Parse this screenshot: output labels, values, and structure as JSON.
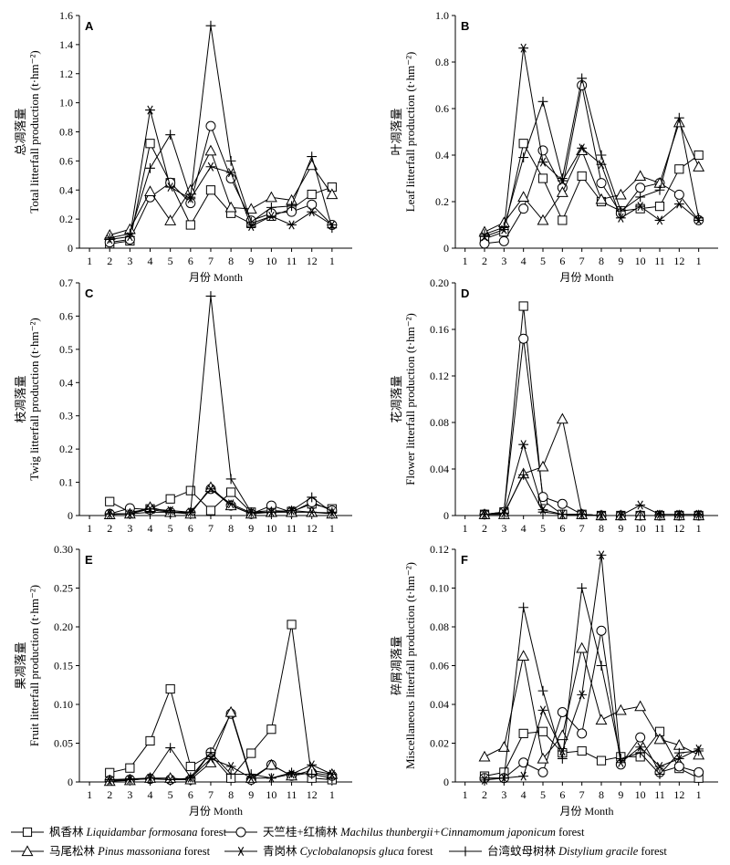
{
  "chart_data": [
    {
      "type": "line",
      "panel": "A",
      "ylabel_cn": "总凋落量",
      "ylabel_en": "Total litterfall production (t·hm⁻²)",
      "xlabel": "月份 Month",
      "x": [
        "1",
        "2",
        "3",
        "4",
        "5",
        "6",
        "7",
        "8",
        "9",
        "10",
        "11",
        "12",
        "1"
      ],
      "ylim": [
        0,
        1.6
      ],
      "yticks": [
        "0",
        "0.2",
        "0.4",
        "0.6",
        "0.8",
        "1.0",
        "1.2",
        "1.4",
        "1.6"
      ],
      "series": [
        {
          "name": "枫香林 Liquidambar formosana forest",
          "marker": "square",
          "values": [
            null,
            0.03,
            0.05,
            0.72,
            0.45,
            0.16,
            0.4,
            0.24,
            0.17,
            0.22,
            0.27,
            0.37,
            0.42
          ]
        },
        {
          "name": "天竺桂+红楠林 Machilus thunbergii+Cinnamomum japonicum forest",
          "marker": "circle",
          "values": [
            null,
            0.04,
            0.06,
            0.35,
            0.45,
            0.31,
            0.84,
            0.48,
            0.19,
            0.24,
            0.25,
            0.3,
            0.16
          ]
        },
        {
          "name": "马尾松林 Pinus massoniana forest",
          "marker": "triangle",
          "values": [
            null,
            0.09,
            0.13,
            0.39,
            0.19,
            0.4,
            0.67,
            0.28,
            0.27,
            0.35,
            0.33,
            0.57,
            0.37
          ]
        },
        {
          "name": "青岗林 Cyclobalanopsis gluca forest",
          "marker": "asterisk",
          "values": [
            null,
            0.06,
            0.08,
            0.95,
            0.42,
            0.34,
            0.56,
            0.52,
            0.15,
            0.22,
            0.16,
            0.25,
            0.16
          ]
        },
        {
          "name": "台湾蚊母树林 Distylium gracile forest",
          "marker": "plus",
          "values": [
            null,
            0.07,
            0.1,
            0.55,
            0.78,
            0.35,
            1.53,
            0.6,
            0.18,
            0.28,
            0.29,
            0.63,
            0.14
          ]
        }
      ]
    },
    {
      "type": "line",
      "panel": "B",
      "ylabel_cn": "叶凋落量",
      "ylabel_en": "Leaf litterfall production (t·hm⁻²)",
      "xlabel": "月份 Month",
      "x": [
        "1",
        "2",
        "3",
        "4",
        "5",
        "6",
        "7",
        "8",
        "9",
        "10",
        "11",
        "12",
        "1"
      ],
      "ylim": [
        0,
        1.0
      ],
      "yticks": [
        "0",
        "0.2",
        "0.4",
        "0.6",
        "0.8",
        "1.0"
      ],
      "series": [
        {
          "name": "枫香林 Liquidambar formosana forest",
          "marker": "square",
          "values": [
            null,
            0.04,
            0.07,
            0.45,
            0.3,
            0.12,
            0.31,
            0.2,
            0.16,
            0.17,
            0.18,
            0.34,
            0.4
          ]
        },
        {
          "name": "天竺桂+红楠林 Machilus thunbergii+Cinnamomum japonicum forest",
          "marker": "circle",
          "values": [
            null,
            0.02,
            0.03,
            0.17,
            0.42,
            0.26,
            0.7,
            0.28,
            0.15,
            0.26,
            0.28,
            0.23,
            0.12
          ]
        },
        {
          "name": "马尾松林 Pinus massoniana forest",
          "marker": "triangle",
          "values": [
            null,
            0.07,
            0.11,
            0.22,
            0.12,
            0.24,
            0.42,
            0.21,
            0.23,
            0.31,
            0.28,
            0.54,
            0.35
          ]
        },
        {
          "name": "青岗林 Cyclobalanopsis gluca forest",
          "marker": "asterisk",
          "values": [
            null,
            0.05,
            0.08,
            0.86,
            0.37,
            0.29,
            0.43,
            0.36,
            0.13,
            0.18,
            0.12,
            0.19,
            0.12
          ]
        },
        {
          "name": "台湾蚊母树林 Distylium gracile forest",
          "marker": "plus",
          "values": [
            null,
            0.06,
            0.09,
            0.39,
            0.63,
            0.3,
            0.73,
            0.4,
            0.16,
            0.22,
            0.25,
            0.56,
            0.13
          ]
        }
      ]
    },
    {
      "type": "line",
      "panel": "C",
      "ylabel_cn": "枝凋落量",
      "ylabel_en": "Twig litterfall production (t·hm⁻²)",
      "xlabel": "",
      "x": [
        "1",
        "2",
        "3",
        "4",
        "5",
        "6",
        "7",
        "8",
        "9",
        "10",
        "11",
        "12",
        "1"
      ],
      "ylim": [
        0,
        0.7
      ],
      "yticks": [
        "0",
        "0.1",
        "0.2",
        "0.3",
        "0.4",
        "0.5",
        "0.6",
        "0.7"
      ],
      "series": [
        {
          "name": "枫香林 Liquidambar formosana forest",
          "marker": "square",
          "values": [
            null,
            0.042,
            0.01,
            0.02,
            0.05,
            0.075,
            0.015,
            0.07,
            0.01,
            0.015,
            0.012,
            0.035,
            0.02
          ]
        },
        {
          "name": "天竺桂+红楠林 Machilus thunbergii+Cinnamomum japonicum forest",
          "marker": "circle",
          "values": [
            null,
            0.005,
            0.022,
            0.018,
            0.01,
            0.008,
            0.08,
            0.03,
            0.005,
            0.03,
            0.01,
            0.04,
            0.015
          ]
        },
        {
          "name": "马尾松林 Pinus massoniana forest",
          "marker": "triangle",
          "values": [
            null,
            0.003,
            0.005,
            0.025,
            0.01,
            0.005,
            0.085,
            0.03,
            0.005,
            0.01,
            0.01,
            0.01,
            0.005
          ]
        },
        {
          "name": "青岗林 Cyclobalanopsis gluca forest",
          "marker": "asterisk",
          "values": [
            null,
            0.005,
            0.005,
            0.02,
            0.015,
            0.01,
            0.08,
            0.035,
            0.008,
            0.01,
            0.015,
            0.01,
            0.008
          ]
        },
        {
          "name": "台湾蚊母树林 Distylium gracile forest",
          "marker": "plus",
          "values": [
            null,
            0.005,
            0.005,
            0.01,
            0.01,
            0.01,
            0.66,
            0.11,
            0.01,
            0.01,
            0.015,
            0.055,
            0.01
          ]
        }
      ]
    },
    {
      "type": "line",
      "panel": "D",
      "ylabel_cn": "花凋落量",
      "ylabel_en": "Flower litterfall production (t·hm⁻²)",
      "xlabel": "",
      "x": [
        "1",
        "2",
        "3",
        "4",
        "5",
        "6",
        "7",
        "8",
        "9",
        "10",
        "11",
        "12",
        "1"
      ],
      "ylim": [
        0,
        0.2
      ],
      "yticks": [
        "0",
        "0.04",
        "0.08",
        "0.12",
        "0.16",
        "0.20"
      ],
      "series": [
        {
          "name": "枫香林 Liquidambar formosana forest",
          "marker": "square",
          "values": [
            null,
            0.001,
            0.003,
            0.18,
            0.013,
            0.001,
            0.001,
            0,
            0,
            0,
            0,
            0,
            0
          ]
        },
        {
          "name": "天竺桂+红楠林 Machilus thunbergii+Cinnamomum japonicum forest",
          "marker": "circle",
          "values": [
            null,
            0.001,
            0.003,
            0.152,
            0.016,
            0.01,
            0.001,
            0,
            0,
            0,
            0,
            0,
            0
          ]
        },
        {
          "name": "马尾松林 Pinus massoniana forest",
          "marker": "triangle",
          "values": [
            null,
            0.001,
            0.001,
            0.036,
            0.042,
            0.083,
            0.001,
            0,
            0,
            0,
            0,
            0,
            0
          ]
        },
        {
          "name": "青岗林 Cyclobalanopsis gluca forest",
          "marker": "asterisk",
          "values": [
            null,
            0.001,
            0.002,
            0.061,
            0.005,
            0.001,
            0.001,
            0,
            0,
            0.009,
            0.001,
            0.001,
            0.001
          ]
        },
        {
          "name": "台湾蚊母树林 Distylium gracile forest",
          "marker": "plus",
          "values": [
            null,
            0.001,
            0.002,
            0.035,
            0.003,
            0.001,
            0.001,
            0,
            0,
            0,
            0,
            0,
            0
          ]
        }
      ]
    },
    {
      "type": "line",
      "panel": "E",
      "ylabel_cn": "果凋落量",
      "ylabel_en": "Fruit litterfall production (t·hm⁻²)",
      "xlabel": "月份 Month",
      "x": [
        "1",
        "2",
        "3",
        "4",
        "5",
        "6",
        "7",
        "8",
        "9",
        "10",
        "11",
        "12",
        "1"
      ],
      "ylim": [
        0,
        0.3
      ],
      "yticks": [
        "0",
        "0.05",
        "0.10",
        "0.15",
        "0.20",
        "0.25",
        "0.30"
      ],
      "series": [
        {
          "name": "枫香林 Liquidambar formosana forest",
          "marker": "square",
          "values": [
            null,
            0.012,
            0.018,
            0.053,
            0.12,
            0.02,
            0.035,
            0.005,
            0.037,
            0.068,
            0.203,
            0.005,
            0.003
          ]
        },
        {
          "name": "天竺桂+红楠林 Machilus thunbergii+Cinnamomum japonicum forest",
          "marker": "circle",
          "values": [
            null,
            0.002,
            0.003,
            0.004,
            0.003,
            0.003,
            0.038,
            0.088,
            0.003,
            0.022,
            0.008,
            0.012,
            0.008
          ]
        },
        {
          "name": "马尾松林 Pinus massoniana forest",
          "marker": "triangle",
          "values": [
            null,
            0.001,
            0.002,
            0.005,
            0.005,
            0.003,
            0.025,
            0.09,
            0.005,
            0.022,
            0.008,
            0.015,
            0.01
          ]
        },
        {
          "name": "青岗林 Cyclobalanopsis gluca forest",
          "marker": "asterisk",
          "values": [
            null,
            0.001,
            0.003,
            0.005,
            0.003,
            0.005,
            0.03,
            0.02,
            0.005,
            0.005,
            0.01,
            0.022,
            0.01
          ]
        },
        {
          "name": "台湾蚊母树林 Distylium gracile forest",
          "marker": "plus",
          "values": [
            null,
            0.003,
            0.004,
            0.005,
            0.044,
            0.006,
            0.038,
            0.01,
            0.01,
            0.005,
            0.012,
            0.01,
            0.005
          ]
        }
      ]
    },
    {
      "type": "line",
      "panel": "F",
      "ylabel_cn": "碎屑凋落量",
      "ylabel_en": "Miscellaneous litterfall production (t·hm⁻²)",
      "xlabel": "月份 Month",
      "x": [
        "1",
        "2",
        "3",
        "4",
        "5",
        "6",
        "7",
        "8",
        "9",
        "10",
        "11",
        "12",
        "1"
      ],
      "ylim": [
        0,
        0.12
      ],
      "yticks": [
        "0",
        "0.02",
        "0.04",
        "0.06",
        "0.08",
        "0.10",
        "0.12"
      ],
      "series": [
        {
          "name": "枫香林 Liquidambar formosana forest",
          "marker": "square",
          "values": [
            null,
            0.003,
            0.005,
            0.025,
            0.026,
            0.015,
            0.016,
            0.011,
            0.013,
            0.013,
            0.026,
            0.007,
            0.002
          ]
        },
        {
          "name": "天竺桂+红楠林 Machilus thunbergii+Cinnamomum japonicum forest",
          "marker": "circle",
          "values": [
            null,
            0.002,
            0.002,
            0.01,
            0.005,
            0.036,
            0.025,
            0.078,
            0.009,
            0.023,
            0.005,
            0.008,
            0.005
          ]
        },
        {
          "name": "马尾松林 Pinus massoniana forest",
          "marker": "triangle",
          "values": [
            null,
            0.013,
            0.018,
            0.065,
            0.012,
            0.024,
            0.069,
            0.032,
            0.037,
            0.039,
            0.022,
            0.019,
            0.014
          ]
        },
        {
          "name": "青岗林 Cyclobalanopsis gluca forest",
          "marker": "asterisk",
          "values": [
            null,
            0.001,
            0.002,
            0.003,
            0.037,
            0.016,
            0.045,
            0.117,
            0.01,
            0.018,
            0.008,
            0.012,
            0.017
          ]
        },
        {
          "name": "台湾蚊母树林 Distylium gracile forest",
          "marker": "plus",
          "values": [
            null,
            0.002,
            0.002,
            0.09,
            0.047,
            0.012,
            0.1,
            0.06,
            0.012,
            0.015,
            0.004,
            0.015,
            0.016
          ]
        }
      ]
    }
  ],
  "legend": {
    "items": [
      {
        "marker": "square",
        "cn": "枫香林",
        "en": "Liquidambar formosana",
        "suffix": "forest"
      },
      {
        "marker": "circle",
        "cn": "天竺桂+红楠林",
        "en": "Machilus thunbergii+Cinnamomum japonicum",
        "suffix": "forest"
      },
      {
        "marker": "triangle",
        "cn": "马尾松林",
        "en": "Pinus massoniana",
        "suffix": "forest"
      },
      {
        "marker": "asterisk",
        "cn": "青岗林",
        "en": "Cyclobalanopsis gluca",
        "suffix": "forest"
      },
      {
        "marker": "plus",
        "cn": "台湾蚊母树林",
        "en": "Distylium gracile",
        "suffix": "forest"
      }
    ]
  }
}
